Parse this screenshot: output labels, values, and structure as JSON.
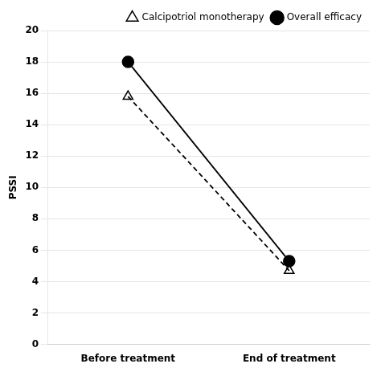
{
  "chart_data": {
    "type": "line",
    "categories": [
      "Before treatment",
      "End of treatment"
    ],
    "series": [
      {
        "name": "Calcipotriol monotherapy",
        "values": [
          15.8,
          4.7
        ],
        "color": "#000000",
        "marker": "open-triangle",
        "line_style": "dashed"
      },
      {
        "name": "Overall efficacy",
        "values": [
          18.0,
          5.3
        ],
        "color": "#000000",
        "marker": "circle",
        "line_style": "solid"
      }
    ],
    "y_label": "PSSI",
    "ylim": [
      0,
      20
    ],
    "yticks": [
      0,
      2,
      4,
      6,
      8,
      10,
      12,
      14,
      16,
      18,
      20
    ],
    "grid": "y",
    "legend": "upper right"
  }
}
